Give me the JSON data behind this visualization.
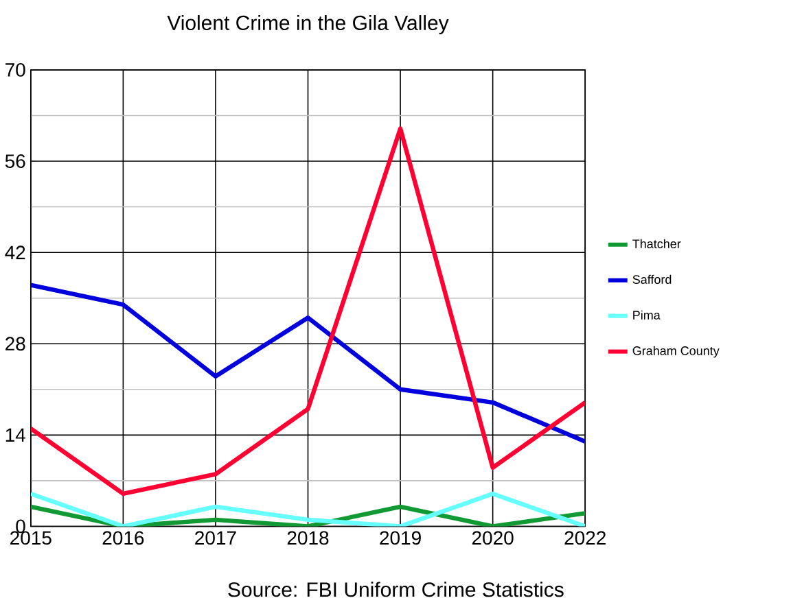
{
  "chart_data": {
    "type": "line",
    "title": "Violent Crime in the Gila Valley",
    "annotations": [
      "Source: FBI Uniform Crime Statistics"
    ],
    "categories": [
      "2015",
      "2016",
      "2017",
      "2018",
      "2019",
      "2020",
      "2022"
    ],
    "series": [
      {
        "name": "Thatcher",
        "color": "#119933",
        "values": [
          3,
          0,
          1,
          0,
          3,
          0,
          2
        ]
      },
      {
        "name": "Safford",
        "color": "#0000dd",
        "values": [
          37,
          34,
          23,
          32,
          21,
          19,
          13
        ]
      },
      {
        "name": "Pima",
        "color": "#66ffff",
        "values": [
          5,
          0,
          3,
          1,
          0,
          5,
          0
        ]
      },
      {
        "name": "Graham County",
        "color": "#ff0033",
        "values": [
          15,
          5,
          8,
          18,
          61,
          9,
          19
        ]
      }
    ],
    "ylim": [
      0,
      70
    ],
    "yticks": [
      0,
      14,
      28,
      42,
      56,
      70
    ],
    "grid": true,
    "legend": "right",
    "marker": "none",
    "line_style": "solid"
  }
}
